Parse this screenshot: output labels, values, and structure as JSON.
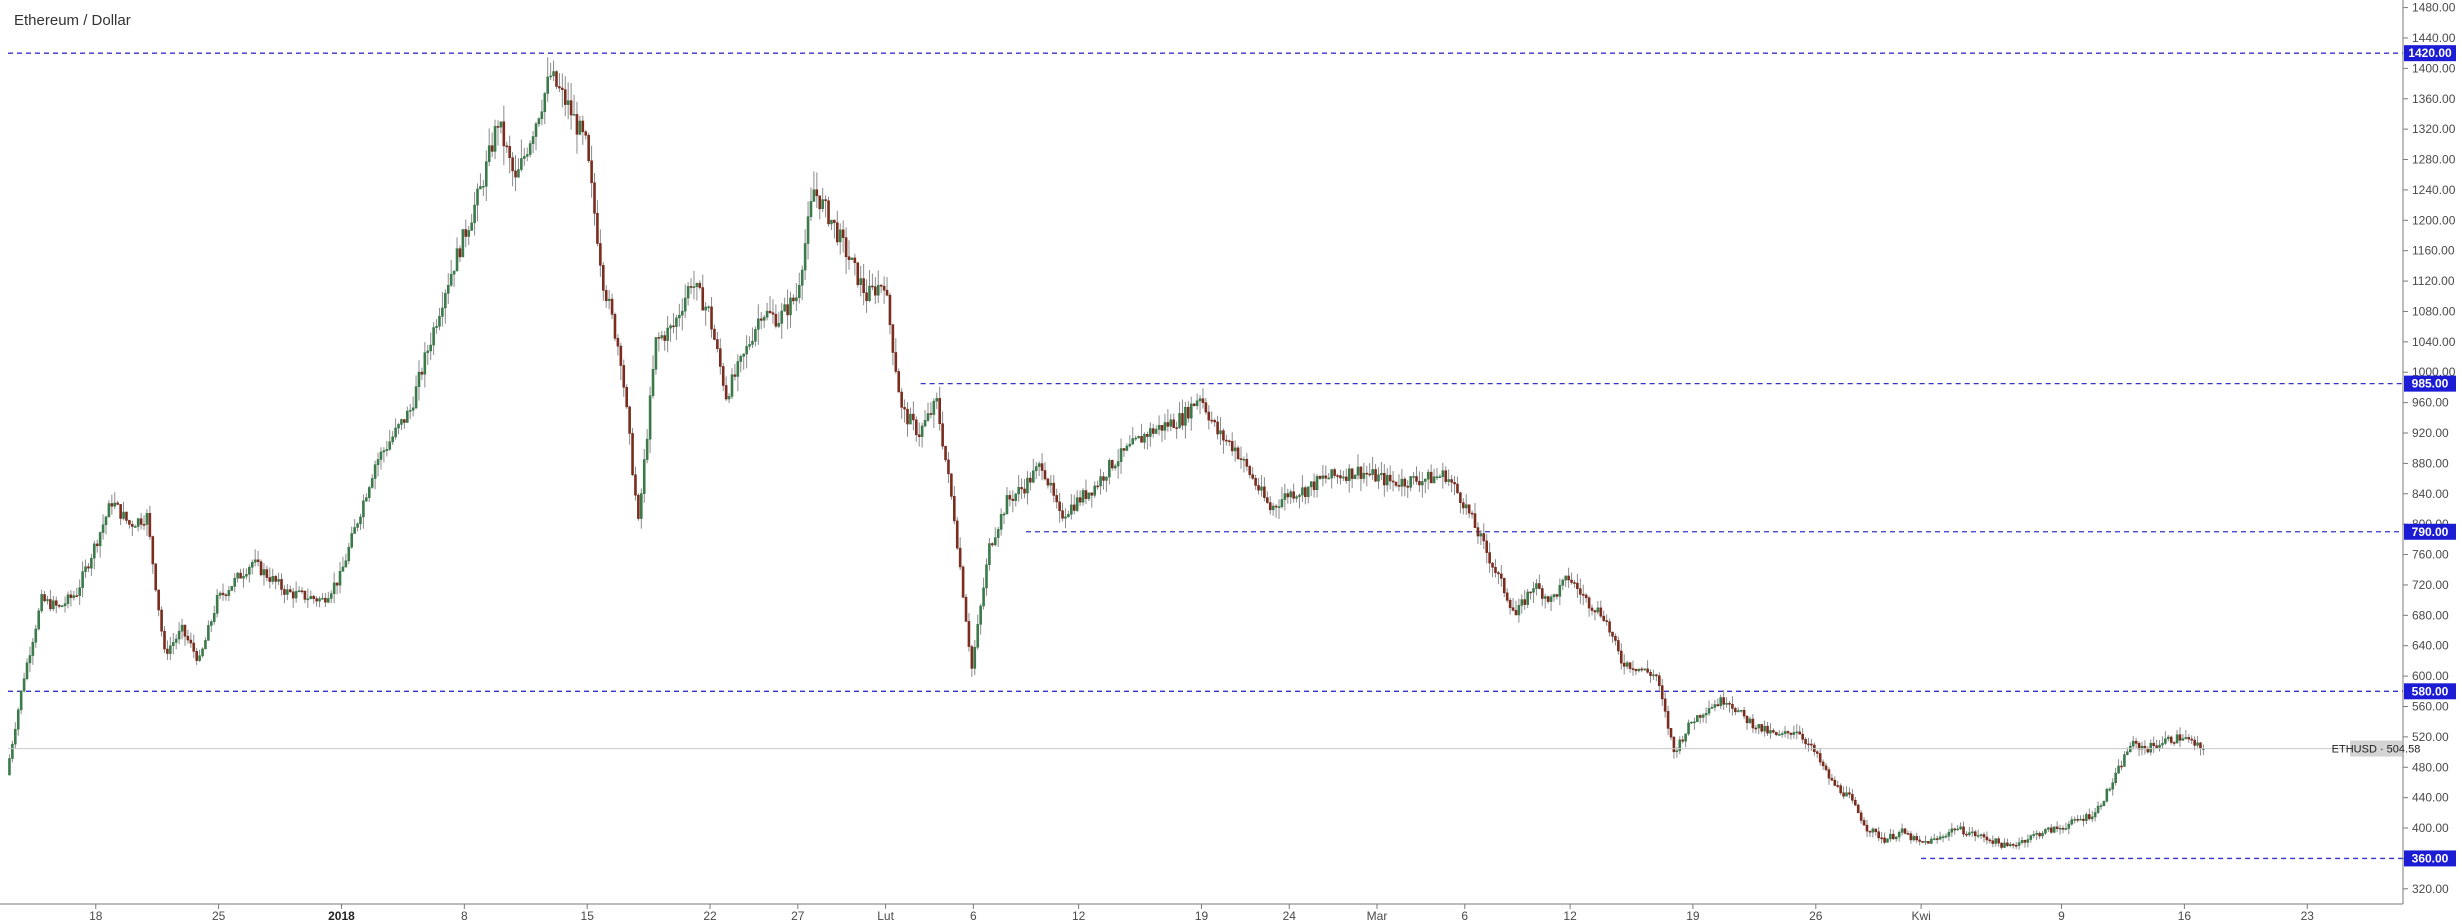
{
  "chart_data": {
    "type": "candlestick",
    "title": "Ethereum / Dollar",
    "symbol": "ETHUSD",
    "last_price": 504.58,
    "last_price_label": "ETHUSD · 504.58",
    "y_axis": {
      "min": 300,
      "max": 1490,
      "position": "right",
      "ticks": [
        320,
        360,
        400,
        440,
        480,
        520,
        560,
        600,
        640,
        680,
        720,
        760,
        800,
        840,
        880,
        920,
        960,
        1000,
        1040,
        1080,
        1120,
        1160,
        1200,
        1240,
        1280,
        1320,
        1360,
        1400,
        1440,
        1480
      ],
      "tick_labels": [
        "320.00",
        "360.00",
        "400.00",
        "440.00",
        "480.00",
        "520.00",
        "560.00",
        "600.00",
        "640.00",
        "680.00",
        "720.00",
        "760.00",
        "800.00",
        "840.00",
        "880.00",
        "920.00",
        "960.00",
        "1000.00",
        "1040.00",
        "1080.00",
        "1120.00",
        "1160.00",
        "1200.00",
        "1240.00",
        "1280.00",
        "1320.00",
        "1360.00",
        "1400.00",
        "1440.00",
        "1480.00"
      ]
    },
    "x_axis": {
      "range": [
        "2017-12-13",
        "2018-04-28"
      ],
      "ticks": [
        {
          "date": "2017-12-18",
          "label": "18",
          "bold": false
        },
        {
          "date": "2017-12-25",
          "label": "25",
          "bold": false
        },
        {
          "date": "2018-01-01",
          "label": "2018",
          "bold": true
        },
        {
          "date": "2018-01-08",
          "label": "8",
          "bold": false
        },
        {
          "date": "2018-01-15",
          "label": "15",
          "bold": false
        },
        {
          "date": "2018-01-22",
          "label": "22",
          "bold": false
        },
        {
          "date": "2018-01-27",
          "label": "27",
          "bold": false
        },
        {
          "date": "2018-02-01",
          "label": "Lut",
          "bold": false
        },
        {
          "date": "2018-02-06",
          "label": "6",
          "bold": false
        },
        {
          "date": "2018-02-12",
          "label": "12",
          "bold": false
        },
        {
          "date": "2018-02-19",
          "label": "19",
          "bold": false
        },
        {
          "date": "2018-02-24",
          "label": "24",
          "bold": false
        },
        {
          "date": "2018-03-01",
          "label": "Mar",
          "bold": false
        },
        {
          "date": "2018-03-06",
          "label": "6",
          "bold": false
        },
        {
          "date": "2018-03-12",
          "label": "12",
          "bold": false
        },
        {
          "date": "2018-03-19",
          "label": "19",
          "bold": false
        },
        {
          "date": "2018-03-26",
          "label": "26",
          "bold": false
        },
        {
          "date": "2018-04-01",
          "label": "Kwi",
          "bold": false
        },
        {
          "date": "2018-04-09",
          "label": "9",
          "bold": false
        },
        {
          "date": "2018-04-16",
          "label": "16",
          "bold": false
        },
        {
          "date": "2018-04-23",
          "label": "23",
          "bold": false
        }
      ]
    },
    "horizontal_levels": [
      {
        "value": 1420,
        "label": "1420.00",
        "from_date": "2017-12-13"
      },
      {
        "value": 985,
        "label": "985.00",
        "from_date": "2018-02-03"
      },
      {
        "value": 790,
        "label": "790.00",
        "from_date": "2018-02-09"
      },
      {
        "value": 580,
        "label": "580.00",
        "from_date": "2017-12-13"
      },
      {
        "value": 360,
        "label": "360.00",
        "from_date": "2018-04-01"
      }
    ],
    "price_path": [
      [
        "2017-12-13",
        470
      ],
      [
        "2017-12-14",
        600
      ],
      [
        "2017-12-15",
        700
      ],
      [
        "2017-12-16",
        690
      ],
      [
        "2017-12-17",
        710
      ],
      [
        "2017-12-19",
        830
      ],
      [
        "2017-12-20",
        800
      ],
      [
        "2017-12-21",
        810
      ],
      [
        "2017-12-22",
        630
      ],
      [
        "2017-12-23",
        660
      ],
      [
        "2017-12-24",
        620
      ],
      [
        "2017-12-25",
        700
      ],
      [
        "2017-12-27",
        750
      ],
      [
        "2017-12-29",
        710
      ],
      [
        "2017-12-31",
        700
      ],
      [
        "2018-01-01",
        730
      ],
      [
        "2018-01-03",
        880
      ],
      [
        "2018-01-05",
        950
      ],
      [
        "2018-01-07",
        1110
      ],
      [
        "2018-01-09",
        1240
      ],
      [
        "2018-01-10",
        1330
      ],
      [
        "2018-01-11",
        1250
      ],
      [
        "2018-01-13",
        1390
      ],
      [
        "2018-01-14",
        1350
      ],
      [
        "2018-01-15",
        1300
      ],
      [
        "2018-01-16",
        1120
      ],
      [
        "2018-01-17",
        1020
      ],
      [
        "2018-01-18",
        800
      ],
      [
        "2018-01-19",
        1040
      ],
      [
        "2018-01-20",
        1060
      ],
      [
        "2018-01-21",
        1120
      ],
      [
        "2018-01-22",
        1080
      ],
      [
        "2018-01-23",
        970
      ],
      [
        "2018-01-24",
        1020
      ],
      [
        "2018-01-25",
        1080
      ],
      [
        "2018-01-26",
        1070
      ],
      [
        "2018-01-27",
        1100
      ],
      [
        "2018-01-28",
        1240
      ],
      [
        "2018-01-29",
        1200
      ],
      [
        "2018-01-30",
        1150
      ],
      [
        "2018-01-31",
        1100
      ],
      [
        "2018-02-01",
        1120
      ],
      [
        "2018-02-02",
        950
      ],
      [
        "2018-02-03",
        920
      ],
      [
        "2018-02-04",
        960
      ],
      [
        "2018-02-05",
        810
      ],
      [
        "2018-02-06",
        610
      ],
      [
        "2018-02-07",
        770
      ],
      [
        "2018-02-08",
        830
      ],
      [
        "2018-02-09",
        850
      ],
      [
        "2018-02-10",
        880
      ],
      [
        "2018-02-11",
        810
      ],
      [
        "2018-02-13",
        850
      ],
      [
        "2018-02-14",
        880
      ],
      [
        "2018-02-16",
        920
      ],
      [
        "2018-02-18",
        940
      ],
      [
        "2018-02-19",
        970
      ],
      [
        "2018-02-20",
        920
      ],
      [
        "2018-02-21",
        900
      ],
      [
        "2018-02-22",
        860
      ],
      [
        "2018-02-23",
        820
      ],
      [
        "2018-02-24",
        840
      ],
      [
        "2018-02-25",
        845
      ],
      [
        "2018-02-26",
        860
      ],
      [
        "2018-02-28",
        870
      ],
      [
        "2018-03-02",
        855
      ],
      [
        "2018-03-04",
        860
      ],
      [
        "2018-03-05",
        865
      ],
      [
        "2018-03-06",
        830
      ],
      [
        "2018-03-07",
        780
      ],
      [
        "2018-03-08",
        730
      ],
      [
        "2018-03-09",
        680
      ],
      [
        "2018-03-10",
        720
      ],
      [
        "2018-03-11",
        700
      ],
      [
        "2018-03-12",
        730
      ],
      [
        "2018-03-13",
        700
      ],
      [
        "2018-03-14",
        680
      ],
      [
        "2018-03-15",
        620
      ],
      [
        "2018-03-16",
        610
      ],
      [
        "2018-03-17",
        600
      ],
      [
        "2018-03-18",
        500
      ],
      [
        "2018-03-19",
        540
      ],
      [
        "2018-03-20",
        560
      ],
      [
        "2018-03-21",
        570
      ],
      [
        "2018-03-22",
        545
      ],
      [
        "2018-03-23",
        530
      ],
      [
        "2018-03-24",
        520
      ],
      [
        "2018-03-25",
        530
      ],
      [
        "2018-03-26",
        500
      ],
      [
        "2018-03-27",
        460
      ],
      [
        "2018-03-28",
        440
      ],
      [
        "2018-03-29",
        400
      ],
      [
        "2018-03-30",
        385
      ],
      [
        "2018-03-31",
        395
      ],
      [
        "2018-04-01",
        380
      ],
      [
        "2018-04-02",
        385
      ],
      [
        "2018-04-03",
        400
      ],
      [
        "2018-04-05",
        385
      ],
      [
        "2018-04-06",
        375
      ],
      [
        "2018-04-07",
        385
      ],
      [
        "2018-04-08",
        395
      ],
      [
        "2018-04-09",
        400
      ],
      [
        "2018-04-10",
        410
      ],
      [
        "2018-04-11",
        420
      ],
      [
        "2018-04-12",
        460
      ],
      [
        "2018-04-13",
        510
      ],
      [
        "2018-04-14",
        505
      ],
      [
        "2018-04-15",
        515
      ],
      [
        "2018-04-16",
        520
      ],
      [
        "2018-04-17",
        504.58
      ]
    ],
    "colors": {
      "up": "#3b7a4a",
      "down": "#7a2c1e",
      "level_line": "#3333cc",
      "level_label_bg": "#1c1cd4",
      "last_price_bg": "#d4d4d4",
      "axis_line": "#7a7a7a",
      "grid": "none"
    },
    "grid": false
  }
}
